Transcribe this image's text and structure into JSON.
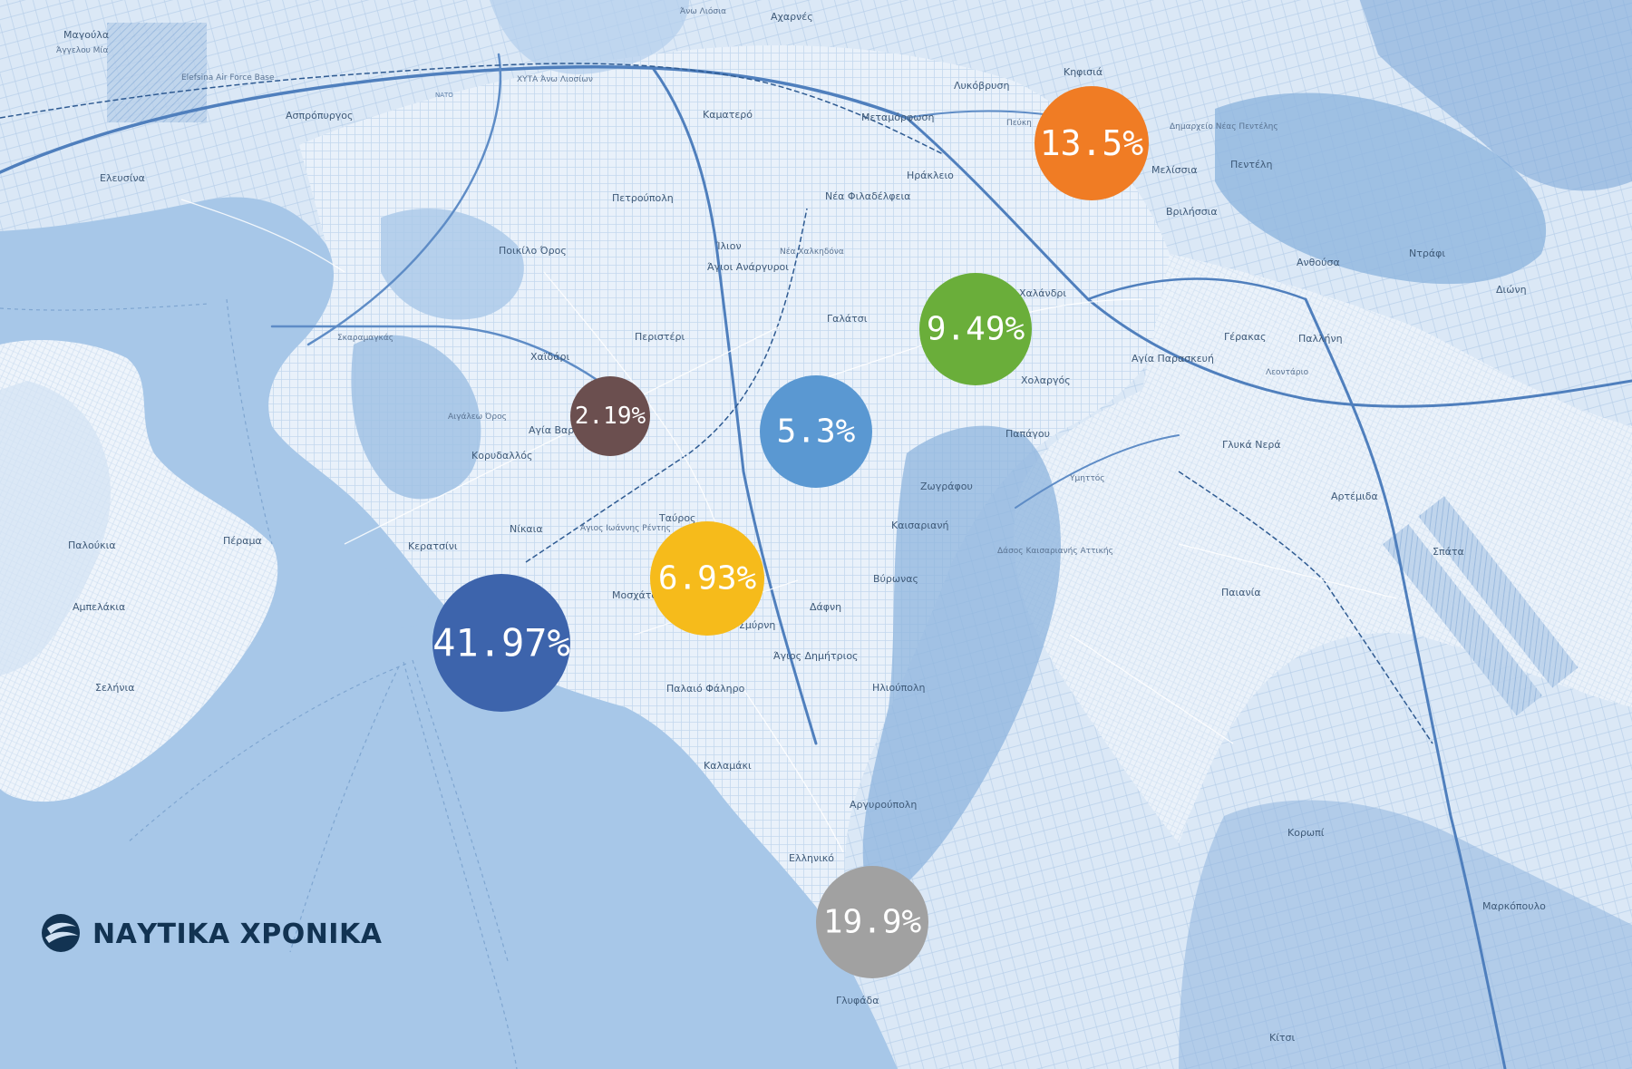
{
  "brand": {
    "name": "ΝΑΥΤΙΚΑ ΧΡΟΝΙΚΑ",
    "icon": "ship-wave-icon"
  },
  "map": {
    "places": [
      {
        "id": "magoula",
        "label": "Μαγούλα"
      },
      {
        "id": "agios-nikolaos-mia",
        "label": "Άγγελου Μία"
      },
      {
        "id": "elefsina",
        "label": "Ελευσίνα"
      },
      {
        "id": "aspropyrgos",
        "label": "Ασπρόπυργος"
      },
      {
        "id": "kamatero",
        "label": "Καματερό"
      },
      {
        "id": "petroupoli",
        "label": "Πετρούπολη"
      },
      {
        "id": "poikilo-oros",
        "label": "Ποικίλο Όρος"
      },
      {
        "id": "ilion",
        "label": "Ίλιον"
      },
      {
        "id": "agioi-anargyroi",
        "label": "Άγιοι Ανάργυροι"
      },
      {
        "id": "acharnes",
        "label": "Αχαρνές"
      },
      {
        "id": "ano-liosia",
        "label": "Άνω Λιόσια"
      },
      {
        "id": "metamorfosi",
        "label": "Μεταμόρφωση"
      },
      {
        "id": "nea-filadelfeia",
        "label": "Νέα Φιλαδέλφεια"
      },
      {
        "id": "nea-chalkidona",
        "label": "Νέα Χαλκηδόνα"
      },
      {
        "id": "irakleio",
        "label": "Ηράκλειο"
      },
      {
        "id": "lykovrysi",
        "label": "Λυκόβρυση"
      },
      {
        "id": "pefki",
        "label": "Πεύκη"
      },
      {
        "id": "kifisia",
        "label": "Κηφισιά"
      },
      {
        "id": "melissia",
        "label": "Μελίσσια"
      },
      {
        "id": "penteli",
        "label": "Πεντέλη"
      },
      {
        "id": "dimarxeio",
        "label": "Δημαρχείο Νέας Πεντέλης"
      },
      {
        "id": "vrilissia",
        "label": "Βριλήσσια"
      },
      {
        "id": "anthousa",
        "label": "Ανθούσα"
      },
      {
        "id": "ntrafi",
        "label": "Ντράφι"
      },
      {
        "id": "dioni",
        "label": "Διώνη"
      },
      {
        "id": "chalandri",
        "label": "Χαλάνδρι"
      },
      {
        "id": "galatsi",
        "label": "Γαλάτσι"
      },
      {
        "id": "peristeri",
        "label": "Περιστέρι"
      },
      {
        "id": "chaidari",
        "label": "Χαϊδάρι"
      },
      {
        "id": "skaramangas",
        "label": "Σκαραμαγκάς"
      },
      {
        "id": "aigaleo-oros",
        "label": "Αιγάλεω Όρος"
      },
      {
        "id": "agia-varvara",
        "label": "Αγία Βαρβάρα"
      },
      {
        "id": "korydallos",
        "label": "Κορυδαλλός"
      },
      {
        "id": "nikaia",
        "label": "Νίκαια"
      },
      {
        "id": "perama",
        "label": "Πέραμα"
      },
      {
        "id": "keratsini",
        "label": "Κερατσίνι"
      },
      {
        "id": "agios-ioannis-rentis",
        "label": "Άγιος Ιωάννης Ρέντης"
      },
      {
        "id": "tavros",
        "label": "Ταύρος"
      },
      {
        "id": "moschato",
        "label": "Μοσχάτο"
      },
      {
        "id": "nea-smyrni",
        "label": "Νέα Σμύρνη"
      },
      {
        "id": "dafni",
        "label": "Δάφνη"
      },
      {
        "id": "agios-dimitrios",
        "label": "Άγιος Δημήτριος"
      },
      {
        "id": "palaio-faliro",
        "label": "Παλαιό Φάληρο"
      },
      {
        "id": "kalamaki",
        "label": "Καλαμάκι"
      },
      {
        "id": "ilioupoli",
        "label": "Ηλιούπολη"
      },
      {
        "id": "argyroupoli",
        "label": "Αργυρούπολη"
      },
      {
        "id": "elliniko",
        "label": "Ελληνικό"
      },
      {
        "id": "glyfada",
        "label": "Γλυφάδα"
      },
      {
        "id": "vyronas",
        "label": "Βύρωνας"
      },
      {
        "id": "kaisariani",
        "label": "Καισαριανή"
      },
      {
        "id": "zografou",
        "label": "Ζωγράφου"
      },
      {
        "id": "papagou",
        "label": "Παπάγου"
      },
      {
        "id": "cholargos",
        "label": "Χολαργός"
      },
      {
        "id": "agia-paraskevi",
        "label": "Αγία Παρασκευή"
      },
      {
        "id": "gerakas",
        "label": "Γέρακας"
      },
      {
        "id": "pallini",
        "label": "Παλλήνη"
      },
      {
        "id": "leontario",
        "label": "Λεοντάριο"
      },
      {
        "id": "glyka-nera",
        "label": "Γλυκά Νερά"
      },
      {
        "id": "arteia",
        "label": "Αρτέμιδα"
      },
      {
        "id": "spata",
        "label": "Σπάτα"
      },
      {
        "id": "paiania",
        "label": "Παιανία"
      },
      {
        "id": "koropi",
        "label": "Κορωπί"
      },
      {
        "id": "markopoulo",
        "label": "Μαρκόπουλο"
      },
      {
        "id": "kitsi",
        "label": "Κίτσι"
      },
      {
        "id": "kaisariani-forest",
        "label": "Δάσος Καισαριανής Αττικής"
      },
      {
        "id": "paloukia",
        "label": "Παλούκια"
      },
      {
        "id": "ampelakia",
        "label": "Αμπελάκια"
      },
      {
        "id": "selinia",
        "label": "Σελήνια"
      },
      {
        "id": "elefsina-base",
        "label": "Elefsina Air Force Base"
      },
      {
        "id": "xyta",
        "label": "ΧΥΤΑ Άνω Λιοσίων"
      },
      {
        "id": "ymittos",
        "label": "Υμηττός"
      },
      {
        "id": "nato-road",
        "label": "ΝΑΤΟ"
      }
    ]
  },
  "bubbles": [
    {
      "id": "orange",
      "value": "13.5%",
      "color": "#f07c24"
    },
    {
      "id": "green",
      "value": "9.49%",
      "color": "#6aae3a"
    },
    {
      "id": "brown",
      "value": "2.19%",
      "color": "#6b4f4f"
    },
    {
      "id": "lightblue",
      "value": "5.3%",
      "color": "#5a98d2"
    },
    {
      "id": "yellow",
      "value": "6.93%",
      "color": "#f6bb1b"
    },
    {
      "id": "darkblue",
      "value": "41.97%",
      "color": "#3d64ac"
    },
    {
      "id": "grey",
      "value": "19.9%",
      "color": "#a1a1a1"
    }
  ]
}
